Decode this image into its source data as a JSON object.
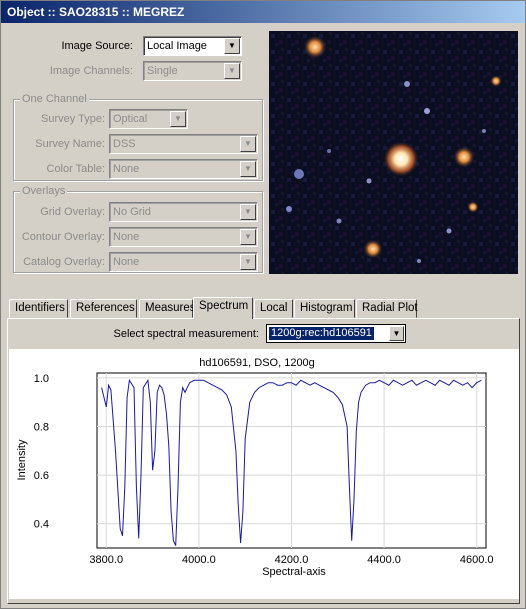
{
  "window": {
    "title": "Object :: SAO28315 :: MEGREZ"
  },
  "image_source": {
    "label": "Image Source:",
    "value": "Local Image"
  },
  "image_channels": {
    "label": "Image Channels:",
    "value": "Single"
  },
  "one_channel": {
    "title": "One Channel",
    "survey_type": {
      "label": "Survey Type:",
      "value": "Optical"
    },
    "survey_name": {
      "label": "Survey Name:",
      "value": "DSS"
    },
    "color_table": {
      "label": "Color Table:",
      "value": "None"
    }
  },
  "overlays": {
    "title": "Overlays",
    "grid": {
      "label": "Grid Overlay:",
      "value": "No Grid"
    },
    "contour": {
      "label": "Contour Overlay:",
      "value": "None"
    },
    "catalog": {
      "label": "Catalog Overlay:",
      "value": "None"
    }
  },
  "tabs": [
    {
      "label": "Identifiers"
    },
    {
      "label": "References"
    },
    {
      "label": "Measures"
    },
    {
      "label": "Spectrum"
    },
    {
      "label": "Local"
    },
    {
      "label": "Histogram"
    },
    {
      "label": "Radial Plot"
    }
  ],
  "active_tab": "Spectrum",
  "spectrum": {
    "select_label": "Select spectral measurement:",
    "select_value": "1200g:rec:hd106591"
  },
  "colors": {
    "line": "#1a1aa0",
    "titlebar_start": "#0a246a",
    "titlebar_end": "#a6caf0"
  },
  "chart_data": {
    "type": "line",
    "title": "hd106591, DSO, 1200g",
    "xlabel": "Spectral-axis",
    "ylabel": "Intensity",
    "xlim": [
      3780,
      4620
    ],
    "ylim": [
      0.3,
      1.02
    ],
    "x_ticks": [
      "3800.0",
      "4000.0",
      "4200.0",
      "4400.0",
      "4600.0"
    ],
    "y_ticks": [
      "0.4",
      "0.6",
      "0.8",
      "1.0"
    ],
    "grid": true,
    "series": [
      {
        "x": [
          3790,
          3800,
          3805,
          3810,
          3820,
          3830,
          3835,
          3840,
          3845,
          3850,
          3860,
          3865,
          3870,
          3875,
          3880,
          3890,
          3895,
          3900,
          3905,
          3910,
          3915,
          3920,
          3925,
          3930,
          3935,
          3940,
          3945,
          3950,
          3955,
          3960,
          3965,
          3970,
          3980,
          3990,
          4000,
          4010,
          4020,
          4030,
          4040,
          4050,
          4060,
          4070,
          4080,
          4085,
          4090,
          4095,
          4100,
          4110,
          4120,
          4130,
          4140,
          4150,
          4160,
          4170,
          4180,
          4190,
          4200,
          4210,
          4220,
          4230,
          4240,
          4250,
          4260,
          4270,
          4280,
          4290,
          4300,
          4310,
          4320,
          4325,
          4330,
          4335,
          4340,
          4345,
          4350,
          4360,
          4370,
          4380,
          4390,
          4400,
          4410,
          4420,
          4430,
          4440,
          4450,
          4460,
          4470,
          4480,
          4490,
          4500,
          4510,
          4520,
          4530,
          4540,
          4550,
          4560,
          4570,
          4580,
          4590,
          4600,
          4610
        ],
        "y": [
          0.96,
          0.88,
          0.97,
          0.95,
          0.7,
          0.38,
          0.35,
          0.55,
          0.92,
          0.99,
          0.96,
          0.55,
          0.34,
          0.6,
          0.96,
          0.99,
          0.9,
          0.62,
          0.7,
          0.94,
          0.97,
          0.96,
          0.93,
          0.85,
          0.72,
          0.45,
          0.33,
          0.31,
          0.55,
          0.9,
          0.96,
          0.94,
          0.98,
          0.99,
          0.99,
          0.99,
          0.98,
          0.97,
          0.96,
          0.95,
          0.93,
          0.88,
          0.7,
          0.48,
          0.32,
          0.45,
          0.75,
          0.9,
          0.94,
          0.96,
          0.97,
          0.98,
          0.98,
          0.97,
          0.97,
          0.98,
          0.98,
          0.97,
          0.99,
          0.98,
          0.97,
          0.98,
          0.97,
          0.96,
          0.95,
          0.94,
          0.92,
          0.89,
          0.8,
          0.55,
          0.33,
          0.5,
          0.78,
          0.9,
          0.94,
          0.97,
          0.98,
          0.98,
          0.99,
          0.98,
          0.97,
          0.99,
          0.98,
          0.97,
          0.98,
          0.99,
          0.97,
          0.98,
          0.99,
          0.98,
          0.97,
          0.99,
          0.98,
          0.97,
          0.99,
          0.98,
          0.97,
          0.98,
          0.96,
          0.98,
          0.99
        ]
      }
    ]
  }
}
